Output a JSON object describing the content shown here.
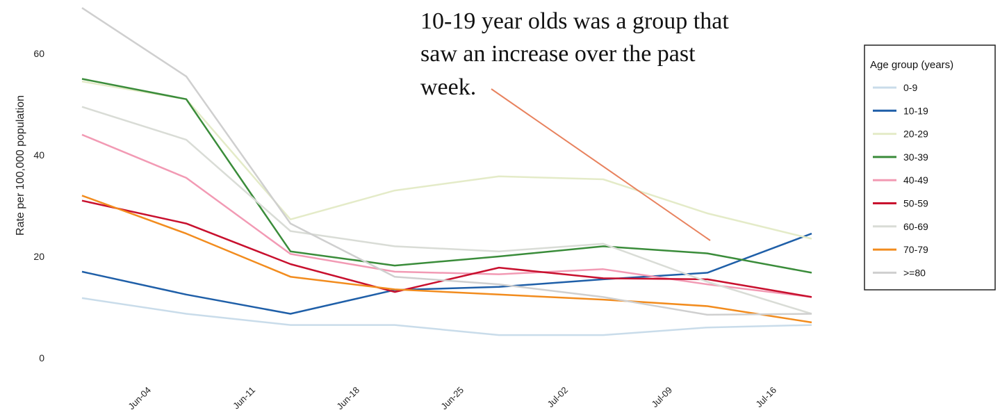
{
  "chart_data": {
    "type": "line",
    "title": "",
    "xlabel": "",
    "ylabel": "Rate per 100,000 population",
    "x_ticks": [
      "Jun-04",
      "Jun-11",
      "Jun-18",
      "Jun-25",
      "Jul-02",
      "Jul-09",
      "Jul-16"
    ],
    "y_ticks": [
      "0",
      "20",
      "40",
      "60"
    ],
    "ylim": [
      0,
      70
    ],
    "grid": false,
    "legend": {
      "title": "Age group (years)",
      "placement": "right"
    },
    "annotation": {
      "lines": [
        "10-19 year olds was a group that",
        "saw an increase over the past",
        "week."
      ]
    },
    "annotation_arrow_color": "#e8825e",
    "series": [
      {
        "name": "0-9",
        "color": "#c9dcea",
        "points": [
          [
            "2021-05-28",
            11.8
          ],
          [
            "2021-06-04",
            8.7
          ],
          [
            "2021-06-11",
            6.5
          ],
          [
            "2021-06-18",
            6.5
          ],
          [
            "2021-06-25",
            4.5
          ],
          [
            "2021-07-02",
            4.5
          ],
          [
            "2021-07-09",
            6.0
          ],
          [
            "2021-07-16",
            6.5
          ]
        ]
      },
      {
        "name": "10-19",
        "color": "#1f5fa8",
        "points": [
          [
            "2021-05-28",
            17.0
          ],
          [
            "2021-06-04",
            12.5
          ],
          [
            "2021-06-11",
            8.7
          ],
          [
            "2021-06-18",
            13.4
          ],
          [
            "2021-06-25",
            14.0
          ],
          [
            "2021-07-02",
            15.5
          ],
          [
            "2021-07-09",
            16.8
          ],
          [
            "2021-07-16",
            24.5
          ]
        ]
      },
      {
        "name": "20-29",
        "color": "#e4ebc8",
        "points": [
          [
            "2021-05-28",
            54.5
          ],
          [
            "2021-06-04",
            51.0
          ],
          [
            "2021-06-11",
            27.3
          ],
          [
            "2021-06-18",
            33.0
          ],
          [
            "2021-06-25",
            35.8
          ],
          [
            "2021-07-02",
            35.2
          ],
          [
            "2021-07-09",
            28.5
          ],
          [
            "2021-07-16",
            23.5
          ]
        ]
      },
      {
        "name": "30-39",
        "color": "#3a8c3a",
        "points": [
          [
            "2021-05-28",
            55.0
          ],
          [
            "2021-06-04",
            51.0
          ],
          [
            "2021-06-11",
            21.0
          ],
          [
            "2021-06-18",
            18.2
          ],
          [
            "2021-06-25",
            20.0
          ],
          [
            "2021-07-02",
            22.0
          ],
          [
            "2021-07-09",
            20.6
          ],
          [
            "2021-07-16",
            16.8
          ]
        ]
      },
      {
        "name": "40-49",
        "color": "#f29ab4",
        "points": [
          [
            "2021-05-28",
            44.0
          ],
          [
            "2021-06-04",
            35.5
          ],
          [
            "2021-06-11",
            20.5
          ],
          [
            "2021-06-18",
            17.0
          ],
          [
            "2021-06-25",
            16.5
          ],
          [
            "2021-07-02",
            17.5
          ],
          [
            "2021-07-09",
            14.5
          ],
          [
            "2021-07-16",
            12.0
          ]
        ]
      },
      {
        "name": "50-59",
        "color": "#c8102e",
        "points": [
          [
            "2021-05-28",
            31.0
          ],
          [
            "2021-06-04",
            26.5
          ],
          [
            "2021-06-11",
            18.5
          ],
          [
            "2021-06-18",
            13.0
          ],
          [
            "2021-06-25",
            17.8
          ],
          [
            "2021-07-02",
            15.7
          ],
          [
            "2021-07-09",
            15.5
          ],
          [
            "2021-07-16",
            12.0
          ]
        ]
      },
      {
        "name": "60-69",
        "color": "#d9dcd6",
        "points": [
          [
            "2021-05-28",
            49.5
          ],
          [
            "2021-06-04",
            43.0
          ],
          [
            "2021-06-11",
            25.0
          ],
          [
            "2021-06-18",
            22.0
          ],
          [
            "2021-06-25",
            21.0
          ],
          [
            "2021-07-02",
            22.5
          ],
          [
            "2021-07-09",
            15.0
          ],
          [
            "2021-07-16",
            8.7
          ]
        ]
      },
      {
        "name": "70-79",
        "color": "#f28c1e",
        "points": [
          [
            "2021-05-28",
            32.0
          ],
          [
            "2021-06-04",
            24.5
          ],
          [
            "2021-06-11",
            16.0
          ],
          [
            "2021-06-18",
            13.5
          ],
          [
            "2021-06-25",
            12.5
          ],
          [
            "2021-07-02",
            11.5
          ],
          [
            "2021-07-09",
            10.2
          ],
          [
            "2021-07-16",
            7.0
          ]
        ]
      },
      {
        "name": ">=80",
        "color": "#cfcfcf",
        "points": [
          [
            "2021-05-28",
            69.0
          ],
          [
            "2021-06-04",
            55.5
          ],
          [
            "2021-06-11",
            26.5
          ],
          [
            "2021-06-18",
            16.0
          ],
          [
            "2021-06-25",
            14.5
          ],
          [
            "2021-07-02",
            12.0
          ],
          [
            "2021-07-09",
            8.5
          ],
          [
            "2021-07-16",
            8.7
          ]
        ]
      }
    ]
  }
}
